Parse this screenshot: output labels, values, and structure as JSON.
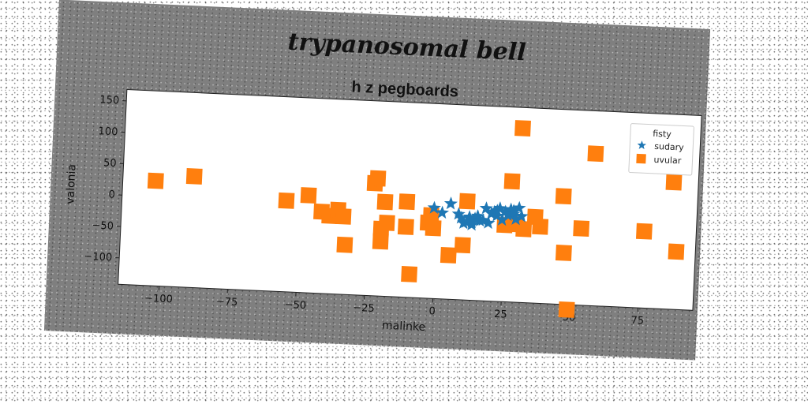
{
  "chart_data": {
    "type": "scatter",
    "suptitle": "trypanosomal bell",
    "title": "h z pegboards",
    "xlabel": "malinke",
    "ylabel": "valonia",
    "xlim": [
      -115,
      95
    ],
    "ylim": [
      -142,
      168
    ],
    "xticks": [
      -100,
      -75,
      -50,
      -25,
      0,
      25,
      50,
      75
    ],
    "yticks": [
      -100,
      -50,
      0,
      50,
      100,
      150
    ],
    "legend": {
      "title": "fisty",
      "position": "top-right"
    },
    "series": [
      {
        "name": "sudary",
        "marker": "star",
        "color": "#1f77b4",
        "x": [
          -1,
          2,
          5,
          8,
          10,
          11,
          12,
          13,
          14,
          15,
          16,
          18,
          19,
          20,
          21,
          22,
          23,
          24,
          25,
          26,
          27,
          28,
          29,
          30,
          31,
          17,
          22,
          28,
          9,
          13
        ],
        "y": [
          2,
          -5,
          10,
          -6,
          -20,
          -18,
          -10,
          -22,
          -12,
          -8,
          -15,
          5,
          -18,
          -3,
          0,
          2,
          6,
          -12,
          1,
          -4,
          5,
          -2,
          -10,
          8,
          -5,
          -14,
          -6,
          3,
          -12,
          -18
        ]
      },
      {
        "name": "uvular",
        "marker": "square",
        "color": "#ff7f0e",
        "x": [
          -103,
          -89,
          -55,
          -47,
          -42,
          -39,
          -36,
          -34,
          -33,
          -23,
          -22,
          -20,
          -20,
          -19,
          -18,
          -11,
          -11,
          -9,
          -3,
          -2,
          -1,
          5,
          10,
          11,
          25,
          27,
          29,
          30,
          32,
          36,
          38,
          46,
          47,
          49,
          53,
          57,
          76,
          86,
          88
        ],
        "y": [
          25,
          35,
          3,
          13,
          -12,
          -18,
          -8,
          -18,
          -63,
          37,
          45,
          -55,
          -35,
          8,
          -25,
          10,
          -30,
          -105,
          -22,
          -10,
          -30,
          -72,
          -55,
          15,
          -20,
          50,
          -18,
          135,
          -25,
          -5,
          -20,
          30,
          -60,
          -150,
          -20,
          100,
          -20,
          60,
          -50
        ]
      }
    ]
  }
}
